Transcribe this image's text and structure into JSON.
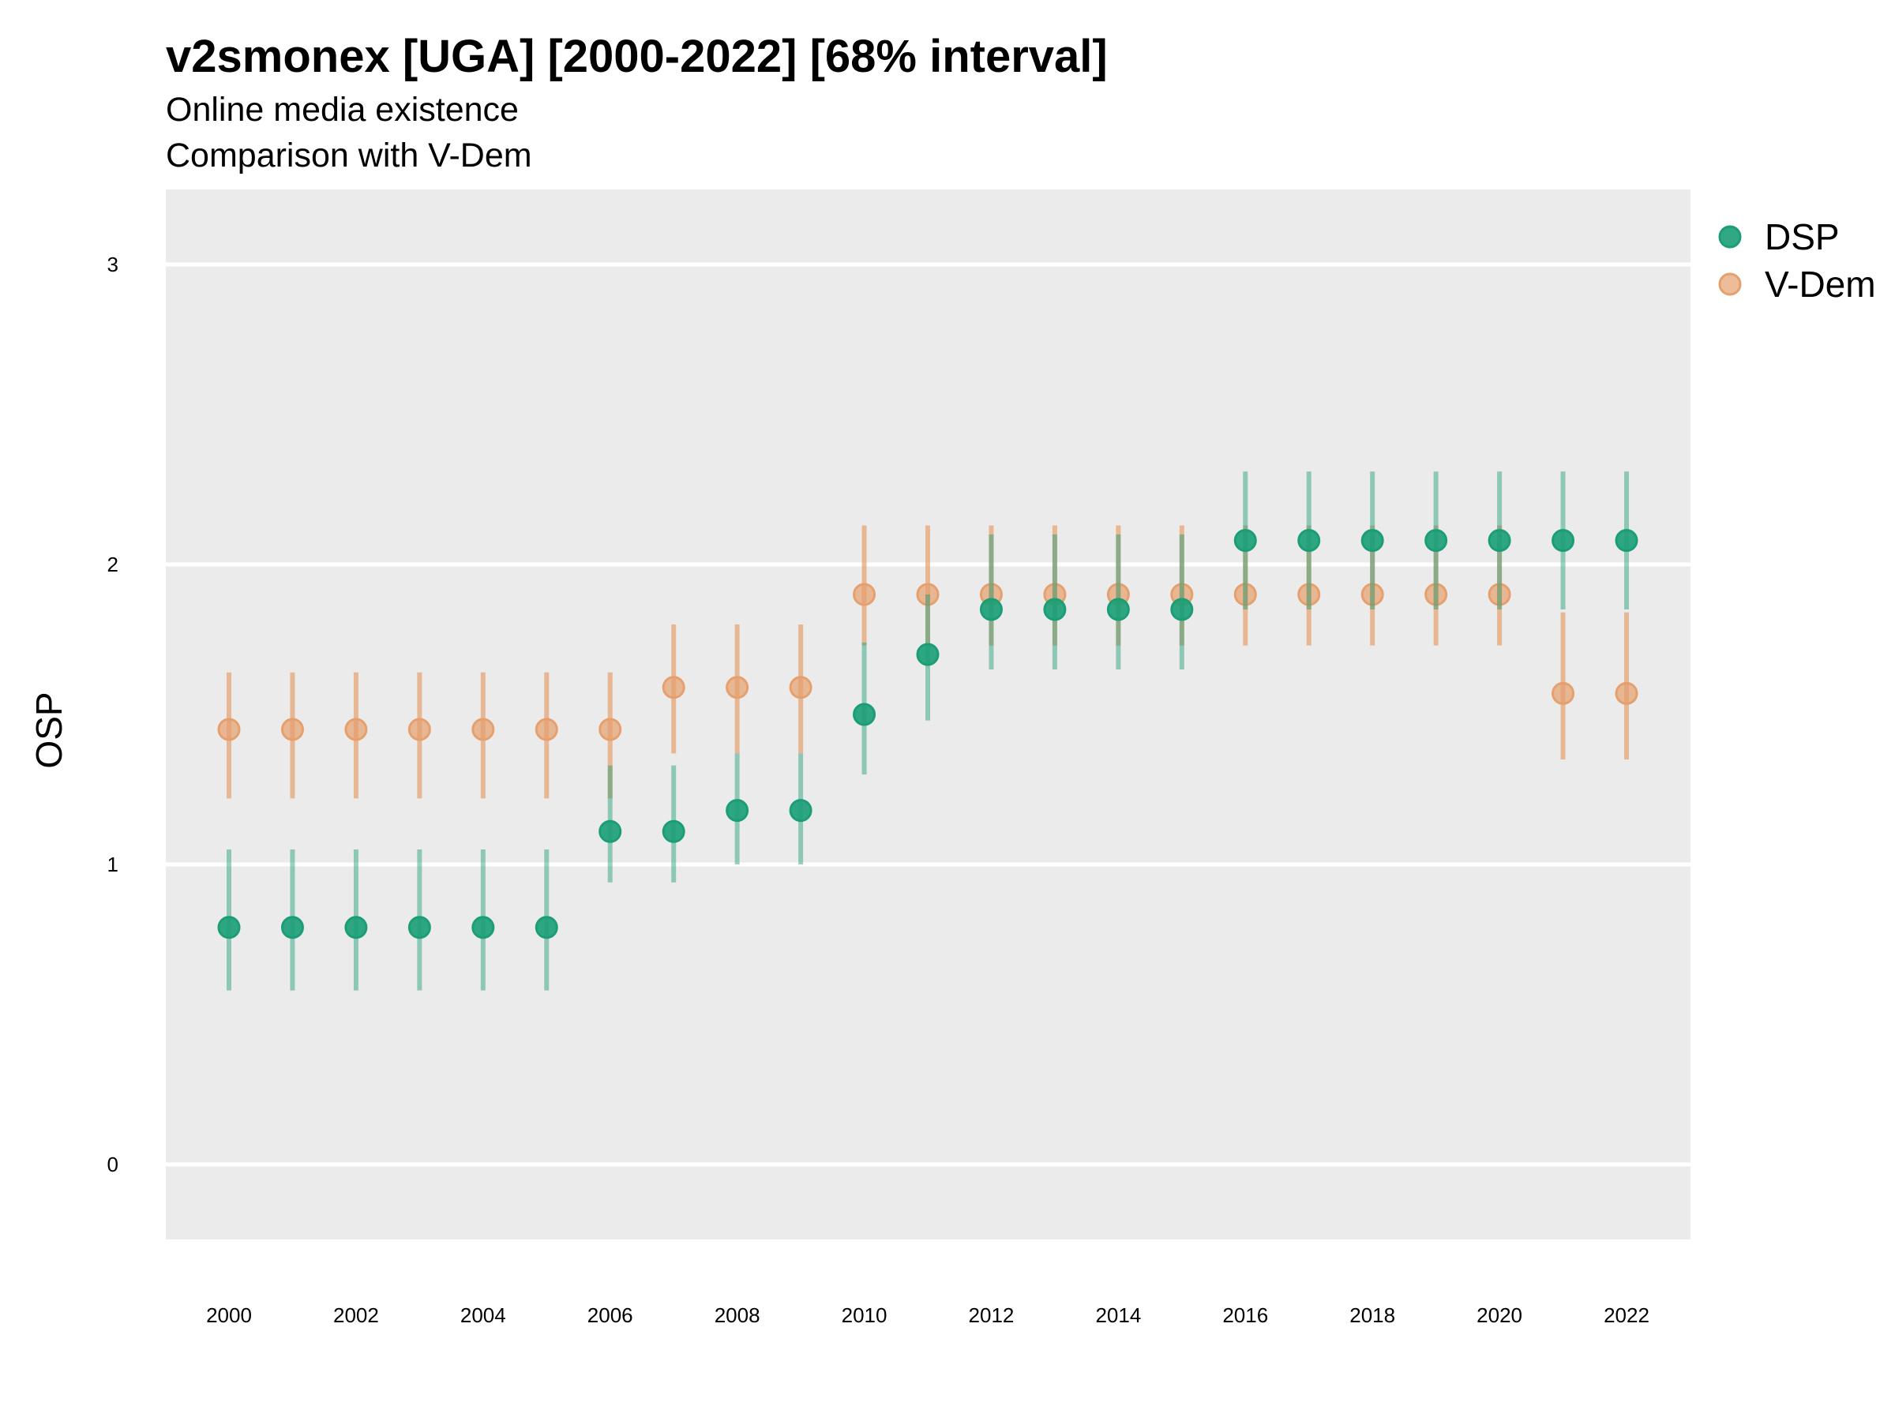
{
  "title": "v2smonex [UGA] [2000-2022] [68% interval]",
  "subtitle_1": "Online media existence",
  "subtitle_2": "Comparison with V-Dem",
  "colors": {
    "DSP": "#1b9e77",
    "V-Dem": "#e6a06e",
    "panel": "#ebebeb",
    "grid": "#ffffff"
  },
  "chart_data": {
    "type": "scatter",
    "title": "v2smonex [UGA] [2000-2022] [68% interval]",
    "subtitle": [
      "Online media existence",
      "Comparison with V-Dem"
    ],
    "xlabel": "",
    "ylabel": "OSP",
    "ylim": [
      -0.25,
      3.25
    ],
    "yticks": [
      0,
      1,
      2,
      3
    ],
    "xticks": [
      2000,
      2002,
      2004,
      2006,
      2008,
      2010,
      2012,
      2014,
      2016,
      2018,
      2020,
      2022
    ],
    "legend_position": "right",
    "grid": true,
    "x": [
      2000,
      2001,
      2002,
      2003,
      2004,
      2005,
      2006,
      2007,
      2008,
      2009,
      2010,
      2011,
      2012,
      2013,
      2014,
      2015,
      2016,
      2017,
      2018,
      2019,
      2020,
      2021,
      2022
    ],
    "series": [
      {
        "name": "DSP",
        "values": [
          0.79,
          0.79,
          0.79,
          0.79,
          0.79,
          0.79,
          1.11,
          1.11,
          1.18,
          1.18,
          1.5,
          1.7,
          1.85,
          1.85,
          1.85,
          1.85,
          2.08,
          2.08,
          2.08,
          2.08,
          2.08,
          2.08,
          2.08
        ],
        "lower": [
          0.58,
          0.58,
          0.58,
          0.58,
          0.58,
          0.58,
          0.94,
          0.94,
          1.0,
          1.0,
          1.3,
          1.48,
          1.65,
          1.65,
          1.65,
          1.65,
          1.85,
          1.85,
          1.85,
          1.85,
          1.85,
          1.85,
          1.85
        ],
        "upper": [
          1.05,
          1.05,
          1.05,
          1.05,
          1.05,
          1.05,
          1.33,
          1.33,
          1.37,
          1.37,
          1.74,
          1.9,
          2.1,
          2.1,
          2.1,
          2.1,
          2.31,
          2.31,
          2.31,
          2.31,
          2.31,
          2.31,
          2.31
        ]
      },
      {
        "name": "V-Dem",
        "values": [
          1.45,
          1.45,
          1.45,
          1.45,
          1.45,
          1.45,
          1.45,
          1.59,
          1.59,
          1.59,
          1.9,
          1.9,
          1.9,
          1.9,
          1.9,
          1.9,
          1.9,
          1.9,
          1.9,
          1.9,
          1.9,
          1.57,
          1.57
        ],
        "lower": [
          1.22,
          1.22,
          1.22,
          1.22,
          1.22,
          1.22,
          1.22,
          1.37,
          1.37,
          1.37,
          1.73,
          1.73,
          1.73,
          1.73,
          1.73,
          1.73,
          1.73,
          1.73,
          1.73,
          1.73,
          1.73,
          1.35,
          1.35
        ],
        "upper": [
          1.64,
          1.64,
          1.64,
          1.64,
          1.64,
          1.64,
          1.64,
          1.8,
          1.8,
          1.8,
          2.13,
          2.13,
          2.13,
          2.13,
          2.13,
          2.13,
          2.13,
          2.13,
          2.13,
          2.13,
          2.13,
          1.84,
          1.84
        ]
      }
    ]
  }
}
